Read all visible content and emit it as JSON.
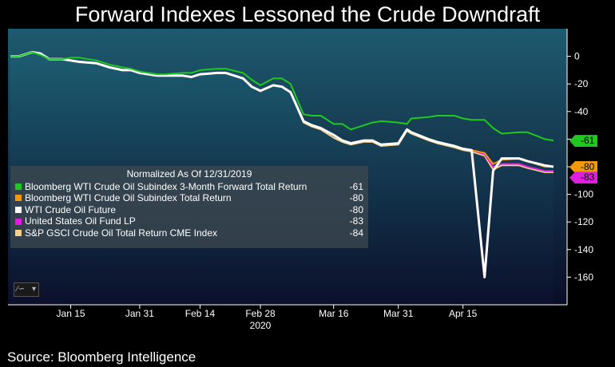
{
  "title": "Forward Indexes Lessoned the Crude Downdraft",
  "source": "Source: Bloomberg Intelligence",
  "legend": {
    "title": "Normalized As Of 12/31/2019"
  },
  "range_button": {
    "icon": "line-chart-icon",
    "caret": "▾"
  },
  "colors": {
    "background_top": "#1e5a6f",
    "background_bottom": "#0a0d26",
    "fill_top": "#1c5d72",
    "fill_bottom": "#0b0f2a"
  },
  "chart_data": {
    "type": "line",
    "title": "Forward Indexes Lessoned the Crude Downdraft",
    "xlabel": "2020",
    "ylabel": "",
    "ylim": [
      -180,
      20
    ],
    "yticks": [
      0,
      -20,
      -40,
      -60,
      -80,
      -100,
      -120,
      -140,
      -160
    ],
    "ytick_labels": [
      "0",
      "-20",
      "-40",
      "-60",
      "-80",
      "-100",
      "-120",
      "-140",
      "-160"
    ],
    "x_tick_labels": [
      "Jan 15",
      "Jan 31",
      "Feb 14",
      "Feb 28",
      "Mar 16",
      "Mar 31",
      "Apr 15"
    ],
    "x_tick_dates": [
      "2020-01-15",
      "2020-01-31",
      "2020-02-14",
      "2020-02-28",
      "2020-03-16",
      "2020-03-31",
      "2020-04-15"
    ],
    "x_range": [
      "2020-01-01",
      "2020-05-06"
    ],
    "year_label": "2020",
    "grid": false,
    "legend_position": "left",
    "x": [
      "2020-01-01",
      "2020-01-03",
      "2020-01-06",
      "2020-01-08",
      "2020-01-10",
      "2020-01-13",
      "2020-01-15",
      "2020-01-17",
      "2020-01-21",
      "2020-01-24",
      "2020-01-27",
      "2020-01-29",
      "2020-01-31",
      "2020-02-04",
      "2020-02-06",
      "2020-02-10",
      "2020-02-12",
      "2020-02-14",
      "2020-02-18",
      "2020-02-20",
      "2020-02-24",
      "2020-02-26",
      "2020-02-28",
      "2020-03-02",
      "2020-03-04",
      "2020-03-06",
      "2020-03-09",
      "2020-03-11",
      "2020-03-13",
      "2020-03-16",
      "2020-03-18",
      "2020-03-20",
      "2020-03-23",
      "2020-03-25",
      "2020-03-27",
      "2020-03-31",
      "2020-04-02",
      "2020-04-03",
      "2020-04-07",
      "2020-04-09",
      "2020-04-13",
      "2020-04-15",
      "2020-04-17",
      "2020-04-20",
      "2020-04-22",
      "2020-04-24",
      "2020-04-28",
      "2020-04-30",
      "2020-05-04",
      "2020-05-06"
    ],
    "series": [
      {
        "name": "Bloomberg WTI Crude Oil Subindex 3-Month Forward Total Return",
        "color": "#1ec81e",
        "last": -61,
        "values": [
          0,
          0,
          3,
          1,
          -2,
          -2,
          -1,
          -1,
          -3,
          -6,
          -8,
          -9,
          -11,
          -13,
          -13,
          -12,
          -12,
          -10,
          -9,
          -9,
          -12,
          -17,
          -21,
          -16,
          -16,
          -20,
          -42,
          -43,
          -43,
          -49,
          -49,
          -53,
          -50,
          -48,
          -47,
          -48,
          -49,
          -45,
          -44,
          -43,
          -43,
          -45,
          -46,
          -46,
          -52,
          -56,
          -55,
          -55,
          -60,
          -61
        ]
      },
      {
        "name": "Bloomberg WTI Crude Oil Subindex Total Return",
        "color": "#f09a0a",
        "last": -80,
        "values": [
          0,
          0,
          3,
          2,
          -2,
          -2,
          -3,
          -4,
          -5,
          -8,
          -10,
          -10,
          -12,
          -14,
          -14,
          -14,
          -15,
          -13,
          -12,
          -12,
          -16,
          -22,
          -25,
          -21,
          -22,
          -26,
          -47,
          -50,
          -52,
          -57,
          -61,
          -63,
          -61,
          -61,
          -64,
          -63,
          -53,
          -55,
          -60,
          -62,
          -65,
          -67,
          -68,
          -70,
          -78,
          -75,
          -74,
          -76,
          -80,
          -80
        ]
      },
      {
        "name": "WTI Crude Oil Future",
        "color": "#ffffff",
        "last": -80,
        "values": [
          0,
          0,
          3,
          2,
          -2,
          -2,
          -3,
          -4,
          -5,
          -8,
          -10,
          -10,
          -12,
          -14,
          -14,
          -14,
          -15,
          -13,
          -12,
          -12,
          -16,
          -22,
          -25,
          -21,
          -22,
          -26,
          -47,
          -50,
          -52,
          -57,
          -61,
          -63,
          -61,
          -61,
          -64,
          -63,
          -53,
          -55,
          -60,
          -62,
          -65,
          -67,
          -68,
          -160,
          -83,
          -74,
          -74,
          -76,
          -79,
          -80
        ]
      },
      {
        "name": "United States Oil Fund LP",
        "color": "#e01ee0",
        "last": -83,
        "values": [
          0,
          0,
          3,
          2,
          -2,
          -2,
          -3,
          -4,
          -5,
          -8,
          -10,
          -10,
          -12,
          -14,
          -14,
          -14,
          -15,
          -13,
          -12,
          -12,
          -16,
          -22,
          -25,
          -21,
          -22,
          -26,
          -47,
          -50,
          -52,
          -57,
          -61,
          -63,
          -61,
          -61,
          -64,
          -63,
          -53,
          -55,
          -60,
          -62,
          -65,
          -67,
          -68,
          -71,
          -80,
          -78,
          -78,
          -80,
          -83,
          -83
        ]
      },
      {
        "name": "S&P GSCI Crude Oil Total Return CME Index",
        "color": "#f5d08a",
        "last": -84,
        "values": [
          0,
          0,
          3,
          2,
          -2,
          -2,
          -3,
          -4,
          -5,
          -8,
          -10,
          -10,
          -12,
          -14,
          -14,
          -14,
          -15,
          -13,
          -12,
          -12,
          -16,
          -22,
          -25,
          -21,
          -22,
          -26,
          -48,
          -51,
          -53,
          -59,
          -62,
          -64,
          -62,
          -62,
          -65,
          -64,
          -54,
          -56,
          -61,
          -63,
          -66,
          -68,
          -69,
          -72,
          -82,
          -79,
          -79,
          -81,
          -84,
          -84
        ]
      }
    ]
  }
}
